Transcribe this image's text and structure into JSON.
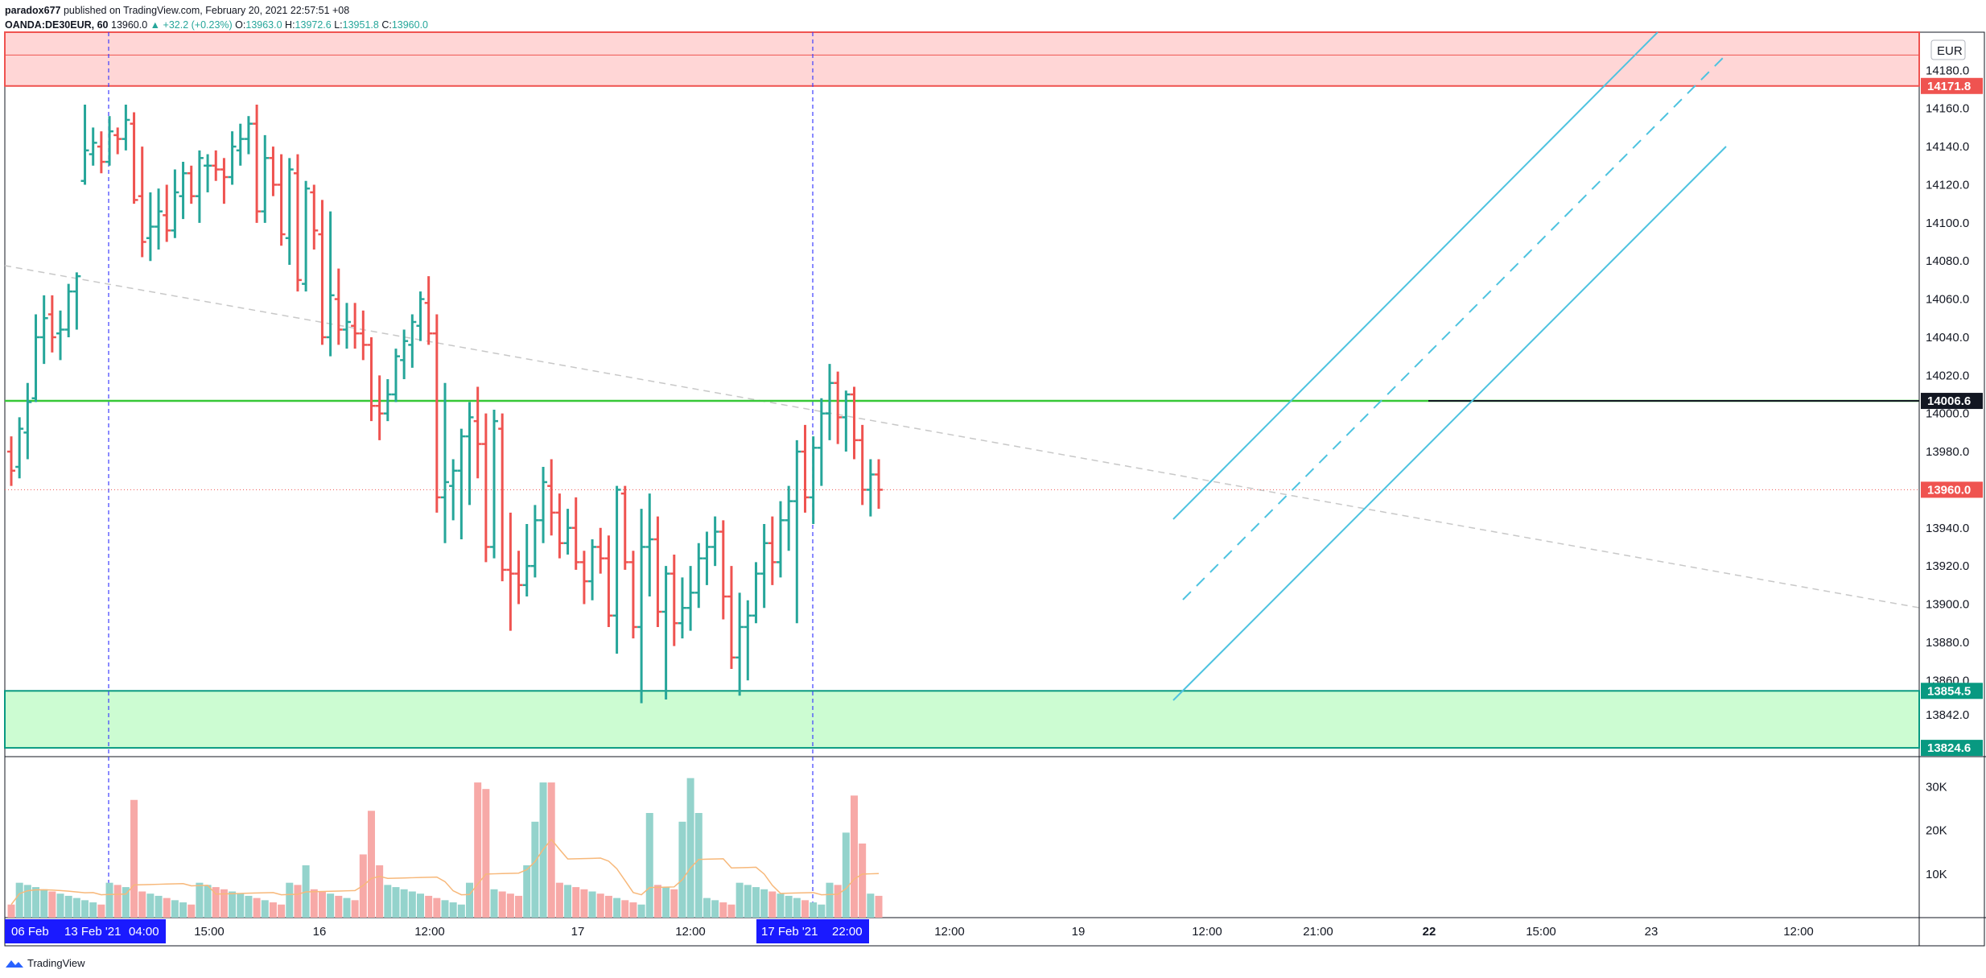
{
  "header": {
    "publisher": "paradox677",
    "published_text": "published on TradingView.com, February 20, 2021 22:57:51 +08",
    "symbol": "OANDA:DE30EUR, 60",
    "last": "13960.0",
    "change": "▲ +32.2 (+0.23%)",
    "open_label": "O:",
    "open": "13963.0",
    "high_label": "H:",
    "high": "13972.6",
    "low_label": "L:",
    "low": "13951.8",
    "close_label": "C:",
    "close": "13960.0"
  },
  "footer": {
    "brand": "TradingView"
  },
  "currency_badge": "EUR",
  "chart_data": {
    "type": "ohlc",
    "symbol": "OANDA:DE30EUR",
    "interval": "60",
    "ylim": [
      13820,
      14200
    ],
    "y_ticks": [
      14180,
      14160,
      14140,
      14120,
      14100,
      14080,
      14060,
      14040,
      14020,
      14000,
      13980,
      13940,
      13920,
      13900,
      13880,
      13860,
      13842
    ],
    "x_ticks": [
      {
        "label": "06 Feb",
        "i": 0,
        "highlight": true
      },
      {
        "label": "13 Feb '21",
        "i": 0,
        "highlight": true
      },
      {
        "label": "04:00",
        "i": 0,
        "highlight": true
      },
      {
        "label": "15:00",
        "i": 11,
        "highlight": false
      },
      {
        "label": "16",
        "i": 22,
        "highlight": false
      },
      {
        "label": "12:00",
        "i": 34,
        "highlight": false
      },
      {
        "label": "17",
        "i": 46,
        "highlight": false
      },
      {
        "label": "12:00",
        "i": 58,
        "highlight": false
      },
      {
        "label": "17 Feb '21",
        "i": 64,
        "highlight": true
      },
      {
        "label": "22:00",
        "i": 64,
        "highlight": true
      },
      {
        "label": "12:00",
        "i": 82,
        "highlight": false
      },
      {
        "label": "19",
        "i": 94,
        "highlight": false
      },
      {
        "label": "12:00",
        "i": 106,
        "highlight": false
      },
      {
        "label": "21:00",
        "i": 115,
        "highlight": false
      },
      {
        "label": "22",
        "i": 124,
        "highlight": false
      },
      {
        "label": "15:00",
        "i": 133,
        "highlight": false
      },
      {
        "label": "23",
        "i": 142,
        "highlight": false
      },
      {
        "label": "12:00",
        "i": 154,
        "highlight": false
      }
    ],
    "bars": [
      [
        13980,
        13988,
        13962,
        13970
      ],
      [
        13972,
        13998,
        13966,
        13992
      ],
      [
        13990,
        14016,
        13976,
        14006
      ],
      [
        14008,
        14052,
        14006,
        14040
      ],
      [
        14040,
        14062,
        14026,
        14050
      ],
      [
        14052,
        14062,
        14032,
        14040
      ],
      [
        14042,
        14054,
        14028,
        14044
      ],
      [
        14044,
        14068,
        14040,
        14064
      ],
      [
        14064,
        14074,
        14044,
        14072
      ],
      [
        14122,
        14162,
        14120,
        14138
      ],
      [
        14136,
        14150,
        14130,
        14142
      ],
      [
        14140,
        14148,
        14126,
        14132
      ],
      [
        14132,
        14156,
        14130,
        14148
      ],
      [
        14146,
        14150,
        14136,
        14144
      ],
      [
        14144,
        14162,
        14138,
        14154
      ],
      [
        14152,
        14158,
        14110,
        14112
      ],
      [
        14114,
        14140,
        14082,
        14090
      ],
      [
        14092,
        14116,
        14080,
        14098
      ],
      [
        14098,
        14118,
        14086,
        14106
      ],
      [
        14104,
        14120,
        14090,
        14096
      ],
      [
        14096,
        14128,
        14092,
        14116
      ],
      [
        14114,
        14132,
        14102,
        14126
      ],
      [
        14126,
        14130,
        14110,
        14114
      ],
      [
        14114,
        14138,
        14100,
        14134
      ],
      [
        14130,
        14136,
        14116,
        14130
      ],
      [
        14130,
        14138,
        14122,
        14128
      ],
      [
        14128,
        14134,
        14110,
        14124
      ],
      [
        14124,
        14148,
        14120,
        14140
      ],
      [
        14138,
        14152,
        14130,
        14144
      ],
      [
        14144,
        14156,
        14136,
        14152
      ],
      [
        14152,
        14162,
        14100,
        14106
      ],
      [
        14106,
        14146,
        14100,
        14134
      ],
      [
        14134,
        14140,
        14114,
        14120
      ],
      [
        14120,
        14136,
        14088,
        14094
      ],
      [
        14092,
        14134,
        14078,
        14128
      ],
      [
        14126,
        14136,
        14064,
        14070
      ],
      [
        14068,
        14122,
        14064,
        14118
      ],
      [
        14116,
        14120,
        14086,
        14096
      ],
      [
        14094,
        14112,
        14036,
        14040
      ],
      [
        14040,
        14106,
        14030,
        14062
      ],
      [
        14060,
        14076,
        14036,
        14044
      ],
      [
        14044,
        14058,
        14034,
        14048
      ],
      [
        14046,
        14058,
        14034,
        14042
      ],
      [
        14042,
        14054,
        14028,
        14036
      ],
      [
        14036,
        14040,
        13996,
        14004
      ],
      [
        14004,
        14020,
        13986,
        14000
      ],
      [
        14000,
        14018,
        13996,
        14010
      ],
      [
        14010,
        14034,
        14006,
        14030
      ],
      [
        14028,
        14044,
        14018,
        14038
      ],
      [
        14036,
        14052,
        14024,
        14048
      ],
      [
        14046,
        14064,
        14038,
        14060
      ],
      [
        14058,
        14072,
        14036,
        14042
      ],
      [
        14042,
        14052,
        13948,
        13956
      ],
      [
        13956,
        14016,
        13932,
        13964
      ],
      [
        13962,
        13976,
        13944,
        13970
      ],
      [
        13970,
        13992,
        13934,
        13988
      ],
      [
        13988,
        14006,
        13952,
        13998
      ],
      [
        13996,
        14014,
        13966,
        13984
      ],
      [
        13984,
        14000,
        13922,
        13930
      ],
      [
        13930,
        14002,
        13924,
        13996
      ],
      [
        13992,
        14000,
        13912,
        13918
      ],
      [
        13918,
        13948,
        13886,
        13916
      ],
      [
        13916,
        13928,
        13900,
        13910
      ],
      [
        13910,
        13942,
        13904,
        13920
      ],
      [
        13920,
        13952,
        13914,
        13944
      ],
      [
        13944,
        13972,
        13932,
        13964
      ],
      [
        13962,
        13976,
        13936,
        13948
      ],
      [
        13948,
        13958,
        13924,
        13932
      ],
      [
        13932,
        13950,
        13926,
        13940
      ],
      [
        13940,
        13956,
        13918,
        13922
      ],
      [
        13922,
        13928,
        13900,
        13912
      ],
      [
        13912,
        13934,
        13902,
        13930
      ],
      [
        13930,
        13940,
        13916,
        13924
      ],
      [
        13924,
        13936,
        13888,
        13894
      ],
      [
        13894,
        13962,
        13874,
        13960
      ],
      [
        13958,
        13962,
        13918,
        13922
      ],
      [
        13922,
        13928,
        13882,
        13888
      ],
      [
        13888,
        13950,
        13848,
        13930
      ],
      [
        13930,
        13958,
        13904,
        13934
      ],
      [
        13934,
        13946,
        13888,
        13896
      ],
      [
        13896,
        13920,
        13850,
        13916
      ],
      [
        13916,
        13926,
        13878,
        13890
      ],
      [
        13890,
        13914,
        13882,
        13898
      ],
      [
        13898,
        13920,
        13886,
        13906
      ],
      [
        13906,
        13932,
        13898,
        13924
      ],
      [
        13924,
        13938,
        13910,
        13930
      ],
      [
        13930,
        13946,
        13920,
        13938
      ],
      [
        13938,
        13944,
        13892,
        13904
      ],
      [
        13904,
        13920,
        13866,
        13872
      ],
      [
        13872,
        13906,
        13852,
        13888
      ],
      [
        13888,
        13902,
        13860,
        13894
      ],
      [
        13894,
        13922,
        13890,
        13916
      ],
      [
        13916,
        13942,
        13898,
        13932
      ],
      [
        13932,
        13946,
        13910,
        13922
      ],
      [
        13922,
        13954,
        13914,
        13944
      ],
      [
        13944,
        13962,
        13928,
        13954
      ],
      [
        13954,
        13986,
        13890,
        13980
      ],
      [
        13980,
        13994,
        13948,
        13956
      ],
      [
        13956,
        13988,
        13942,
        13982
      ],
      [
        13982,
        14008,
        13962,
        14000
      ],
      [
        14000,
        14026,
        13986,
        14016
      ],
      [
        14016,
        14022,
        13984,
        13998
      ],
      [
        13998,
        14012,
        13980,
        14010
      ],
      [
        14010,
        14014,
        13976,
        13986
      ],
      [
        13986,
        13994,
        13952,
        13960
      ],
      [
        13960,
        13976,
        13946,
        13968
      ],
      [
        13968,
        13976,
        13950,
        13960
      ]
    ],
    "volume_ticks": [
      "30K",
      "20K",
      "10K"
    ],
    "volume_max": 36000,
    "levels": [
      {
        "value": 14006.6,
        "label": "14006.6",
        "color": "#131722"
      },
      {
        "value": 13960.0,
        "label": "13960.0",
        "color": "#ef5350"
      },
      {
        "value": 14171.8,
        "label": "14171.8",
        "color": "#ef5350"
      },
      {
        "value": 13854.5,
        "label": "13854.5",
        "color": "#089981"
      },
      {
        "value": 13824.6,
        "label": "13824.6",
        "color": "#089981"
      }
    ],
    "red_zone": [
      14171.8,
      14200
    ],
    "green_zone": [
      13824.6,
      13854.5
    ],
    "colors": {
      "up": "#26a69a",
      "down": "#ef5350",
      "vol_up": "#94d3cc",
      "vol_down": "#f7a9a7",
      "channel": "#4ec3e0",
      "ma": "#f7b87a"
    }
  }
}
